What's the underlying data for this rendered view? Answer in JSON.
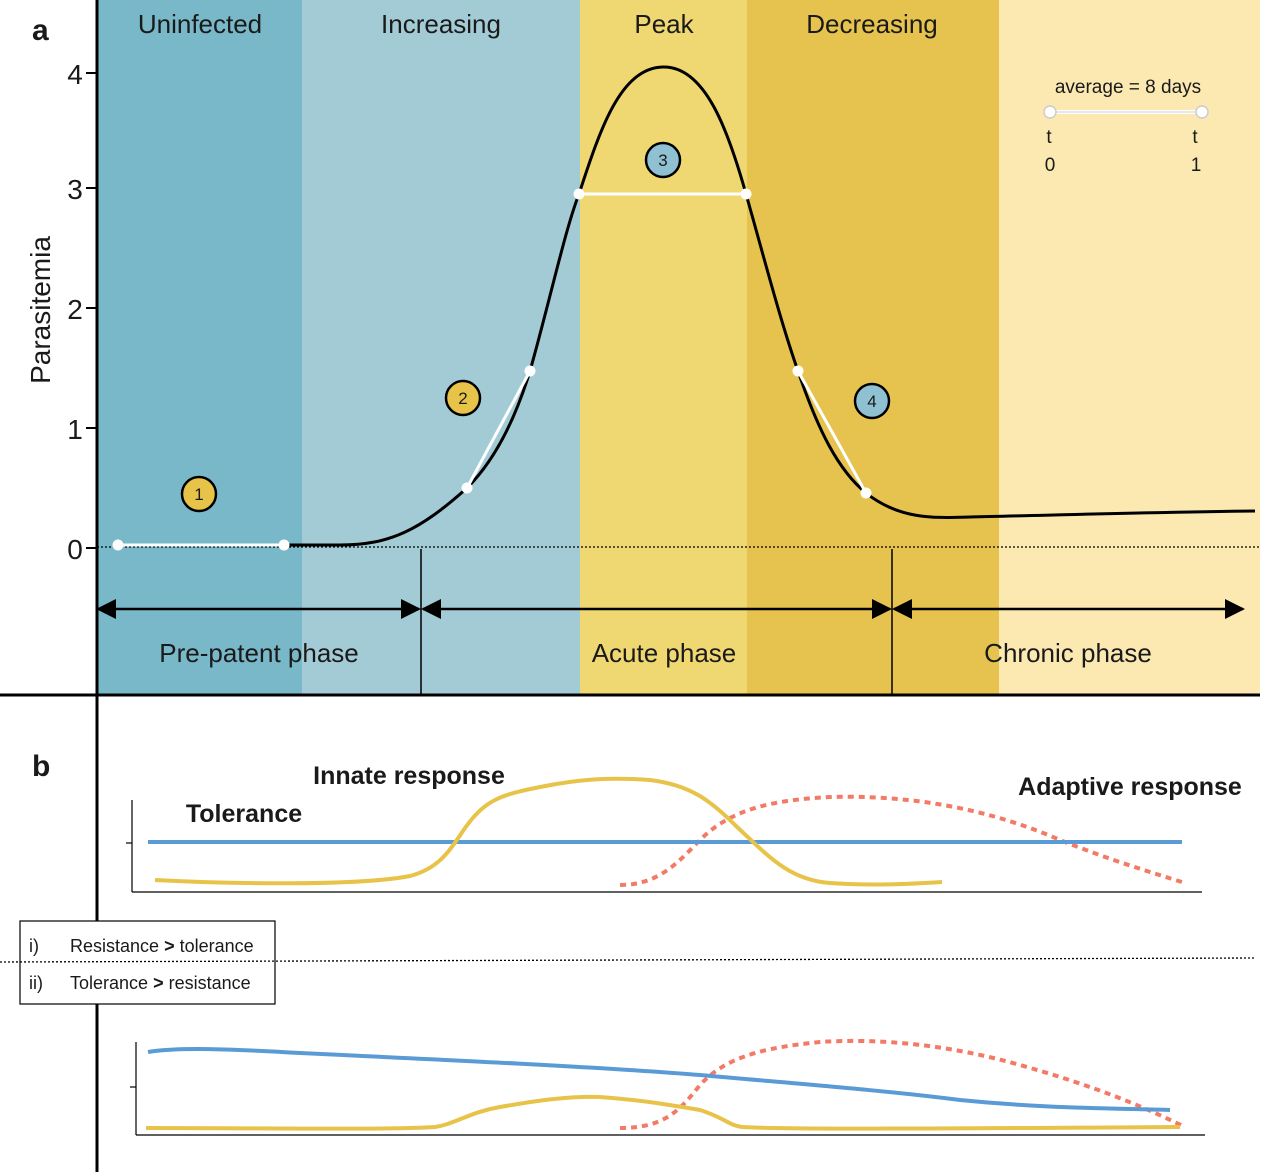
{
  "panel_a": {
    "label": "a",
    "y_axis_label": "Parasitemia",
    "y_ticks": [
      "0",
      "1",
      "2",
      "3",
      "4"
    ],
    "stages": [
      {
        "name": "Uninfected",
        "color": "#78b8c8"
      },
      {
        "name": "Increasing",
        "color": "#a3cbd6"
      },
      {
        "name": "Peak",
        "color": "#efd871"
      },
      {
        "name": "Decreasing",
        "color": "#e6c34e"
      },
      {
        "name": "",
        "color": "#fbe9b1"
      }
    ],
    "phases": [
      {
        "name": "Pre-patent phase"
      },
      {
        "name": "Acute phase"
      },
      {
        "name": "Chronic phase"
      }
    ],
    "markers": [
      {
        "number": "1",
        "color": "#e8c349"
      },
      {
        "number": "2",
        "color": "#e8c349"
      },
      {
        "number": "3",
        "color": "#8fc1d3"
      },
      {
        "number": "4",
        "color": "#8fc1d3"
      }
    ],
    "scale_bar": {
      "label": "average = 8 days",
      "t_left": "t",
      "t_left_sub": "0",
      "t_right": "t",
      "t_right_sub": "1"
    }
  },
  "panel_b": {
    "label": "b",
    "innate_label": "Innate response",
    "tolerance_label": "Tolerance",
    "adaptive_label": "Adaptive response",
    "colors": {
      "innate": "#e8c349",
      "tolerance": "#5b9bd5",
      "adaptive": "#f27a66"
    },
    "legend": [
      {
        "numeral": "i)",
        "text_a": "Resistance",
        "op": ">",
        "text_b": "tolerance"
      },
      {
        "numeral": "ii)",
        "text_a": "Tolerance",
        "op": ">",
        "text_b": "resistance"
      }
    ]
  }
}
